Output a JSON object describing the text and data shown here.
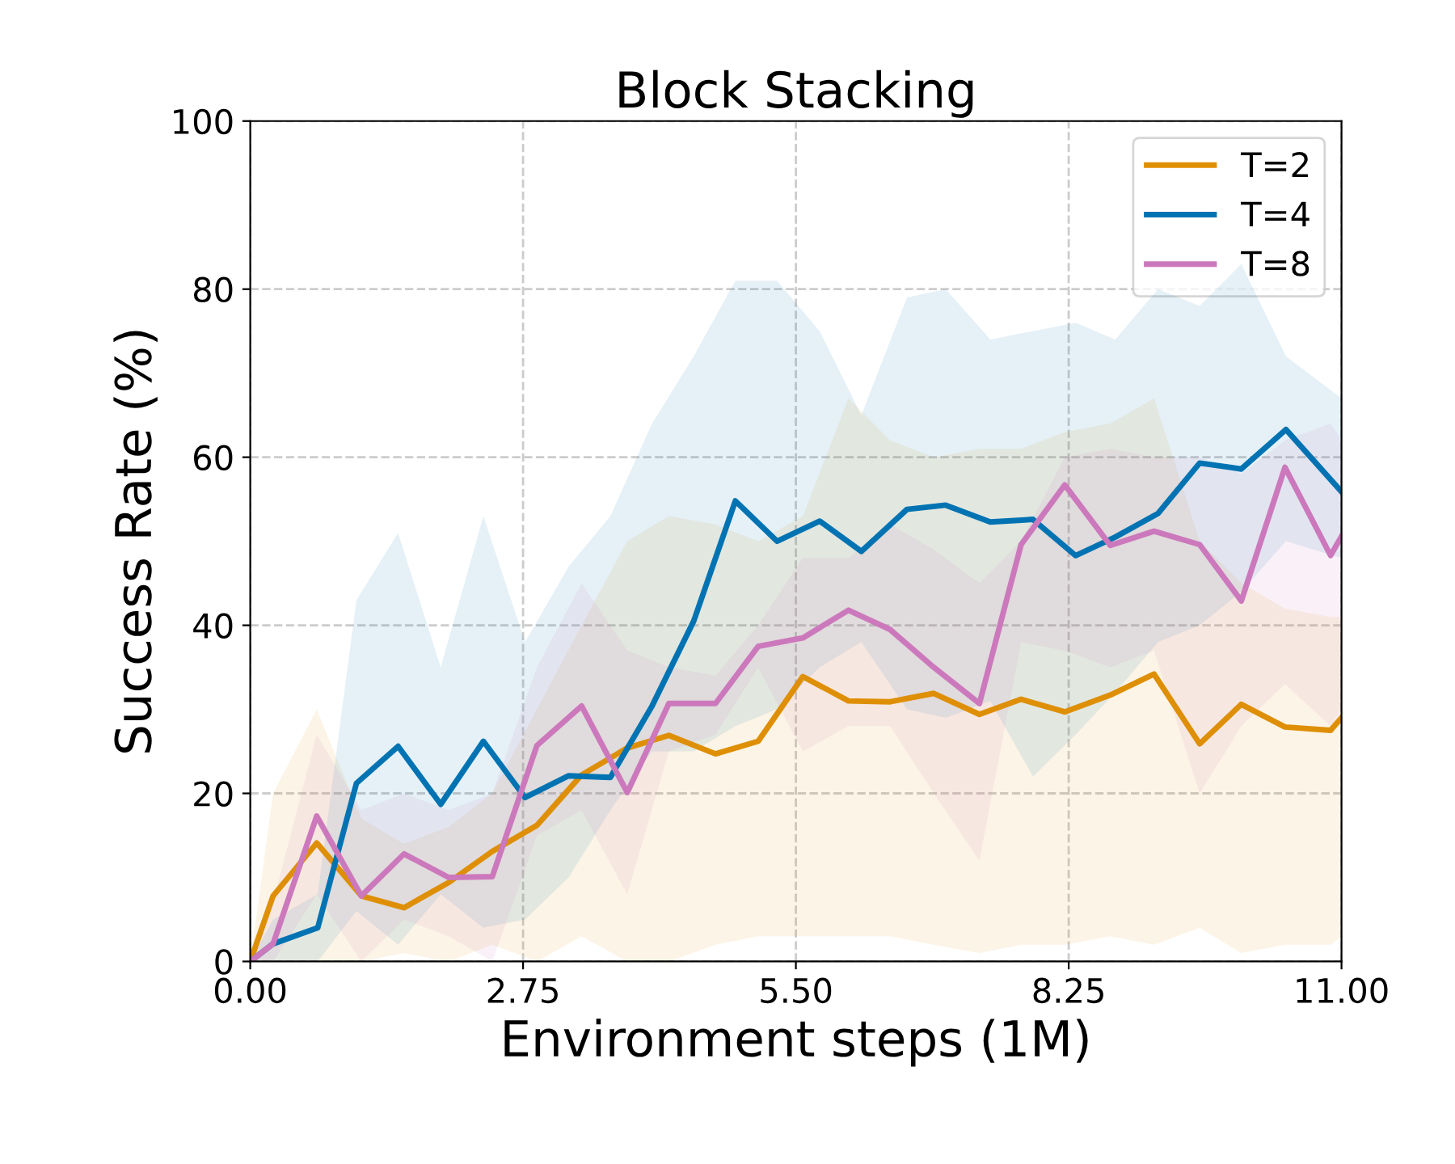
{
  "chart_data": {
    "type": "line",
    "title": "Block Stacking",
    "xlabel": "Environment steps (1M)",
    "ylabel": "Success Rate (%)",
    "xlim": [
      0,
      11
    ],
    "ylim": [
      0,
      100
    ],
    "xticks": [
      {
        "value": 0,
        "label": "0.00"
      },
      {
        "value": 2.75,
        "label": "2.75"
      },
      {
        "value": 5.5,
        "label": "5.50"
      },
      {
        "value": 8.25,
        "label": "8.25"
      },
      {
        "value": 11,
        "label": "11.00"
      }
    ],
    "yticks": [
      0,
      20,
      40,
      60,
      80,
      100
    ],
    "grid": true,
    "legend": "top right",
    "marker": "none",
    "line_style": "solid",
    "series": [
      {
        "name": "T=2",
        "color": "#de8f05",
        "x": [
          0,
          0.23,
          0.67,
          1.12,
          1.55,
          2.0,
          2.44,
          2.89,
          3.34,
          3.8,
          4.22,
          4.69,
          5.12,
          5.57,
          6.03,
          6.45,
          6.89,
          7.35,
          7.77,
          8.21,
          8.67,
          9.11,
          9.57,
          9.99,
          10.43,
          10.89,
          11.0
        ],
        "values": [
          0,
          7.8,
          14.1,
          7.8,
          6.4,
          9.4,
          13.1,
          16.2,
          22.2,
          25.4,
          26.9,
          24.7,
          26.2,
          33.9,
          31.0,
          30.9,
          31.9,
          29.4,
          31.2,
          29.7,
          31.7,
          34.2,
          25.9,
          30.6,
          27.9,
          27.5,
          29.0
        ],
        "lower": [
          0,
          0,
          0,
          0,
          1,
          0,
          2,
          0,
          3,
          0,
          0,
          2,
          3,
          3,
          3,
          3,
          2,
          1,
          2,
          2,
          3,
          2,
          4,
          1,
          2,
          2,
          3
        ],
        "upper": [
          0,
          20,
          30,
          17,
          14,
          16,
          20,
          30,
          40,
          50,
          53,
          52,
          50,
          53,
          67,
          62,
          60,
          61,
          61,
          63,
          64,
          67,
          50,
          45,
          42,
          41,
          41
        ]
      },
      {
        "name": "T=4",
        "color": "#0173b2",
        "x": [
          0,
          0.23,
          0.68,
          1.07,
          1.49,
          1.92,
          2.35,
          2.77,
          3.21,
          3.63,
          4.05,
          4.47,
          4.89,
          5.31,
          5.74,
          6.16,
          6.62,
          7.01,
          7.46,
          7.89,
          8.32,
          8.72,
          9.15,
          9.57,
          9.99,
          10.44,
          11.0
        ],
        "values": [
          0,
          2.1,
          4.0,
          21.2,
          25.6,
          18.7,
          26.2,
          19.5,
          22.1,
          21.9,
          30.4,
          40.5,
          54.8,
          50.0,
          52.4,
          48.8,
          53.8,
          54.3,
          52.3,
          52.6,
          48.3,
          50.5,
          53.3,
          59.3,
          58.6,
          63.3,
          55.9
        ],
        "lower": [
          0,
          0,
          0,
          6,
          2,
          8,
          4,
          5,
          10,
          18,
          25,
          25,
          28,
          30,
          35,
          38,
          30,
          29,
          31,
          22,
          27,
          32,
          38,
          40,
          44,
          50,
          48
        ],
        "upper": [
          0,
          5,
          8,
          43,
          51,
          35,
          53,
          38,
          47,
          53,
          64,
          72,
          81,
          81,
          75,
          65,
          79,
          80,
          74,
          75,
          76,
          74,
          80,
          78,
          83,
          72,
          67
        ]
      },
      {
        "name": "T=8",
        "color": "#cc78bc",
        "x": [
          0,
          0.23,
          0.67,
          1.12,
          1.55,
          2.0,
          2.44,
          2.89,
          3.34,
          3.8,
          4.22,
          4.69,
          5.12,
          5.57,
          6.03,
          6.45,
          6.89,
          7.35,
          7.77,
          8.21,
          8.67,
          9.11,
          9.57,
          9.99,
          10.43,
          10.89,
          11.0
        ],
        "values": [
          0,
          2.1,
          17.3,
          7.8,
          12.8,
          10.0,
          10.1,
          25.7,
          30.4,
          20.1,
          30.7,
          30.7,
          37.5,
          38.5,
          41.8,
          39.5,
          35.0,
          30.7,
          49.6,
          56.7,
          49.5,
          51.2,
          49.6,
          42.9,
          58.8,
          48.3,
          50.6
        ],
        "lower": [
          0,
          0,
          8,
          0,
          5,
          3,
          0,
          15,
          18,
          8,
          25,
          27,
          35,
          25,
          28,
          28,
          20,
          12,
          38,
          37,
          35,
          37,
          20,
          28,
          33,
          28,
          30
        ],
        "upper": [
          0,
          7,
          27,
          18,
          20,
          18,
          20,
          35,
          45,
          37,
          35,
          34,
          40,
          48,
          48,
          52,
          49,
          45,
          50,
          60,
          61,
          60,
          60,
          58,
          62,
          64,
          62
        ]
      }
    ]
  }
}
